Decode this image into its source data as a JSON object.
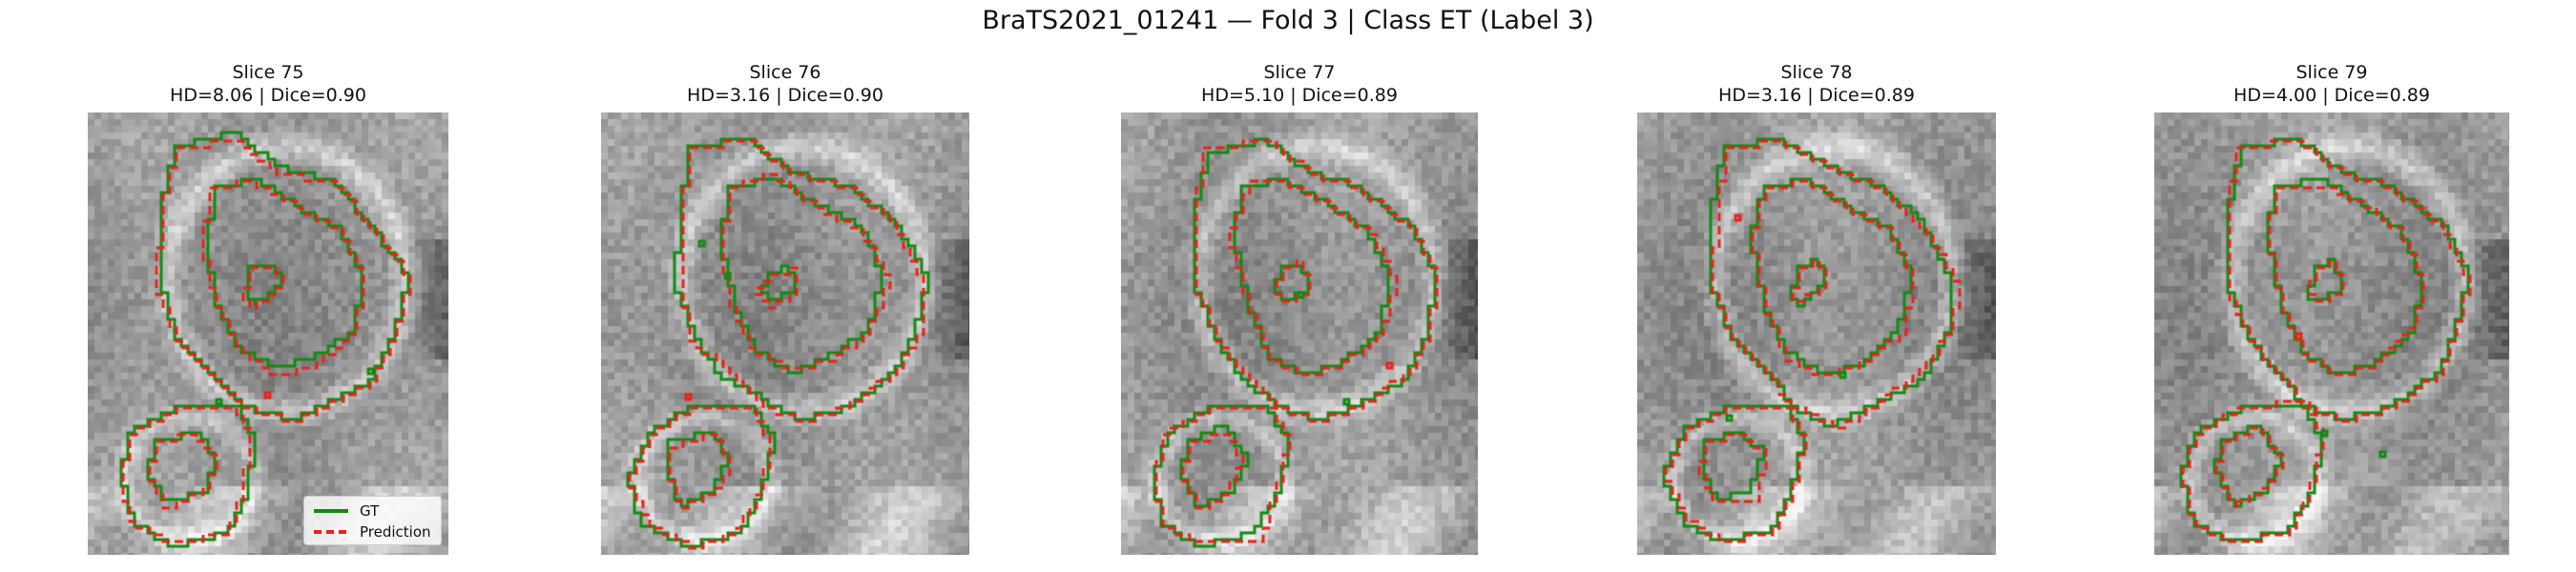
{
  "figure": {
    "title": "BraTS2021_01241 — Fold 3 | Class ET (Label 3)"
  },
  "panels": [
    {
      "slice": "Slice 75",
      "metrics": "HD=8.06 | Dice=0.90"
    },
    {
      "slice": "Slice 76",
      "metrics": "HD=3.16 | Dice=0.90"
    },
    {
      "slice": "Slice 77",
      "metrics": "HD=5.10 | Dice=0.89"
    },
    {
      "slice": "Slice 78",
      "metrics": "HD=3.16 | Dice=0.89"
    },
    {
      "slice": "Slice 79",
      "metrics": "HD=4.00 | Dice=0.89"
    }
  ],
  "legend": {
    "items": [
      {
        "label": "GT",
        "color": "#138a13",
        "style": "solid"
      },
      {
        "label": "Prediction",
        "color": "#e8231a",
        "style": "dashed"
      }
    ]
  },
  "colors": {
    "gt": "#138a13",
    "prediction": "#e8231a"
  }
}
